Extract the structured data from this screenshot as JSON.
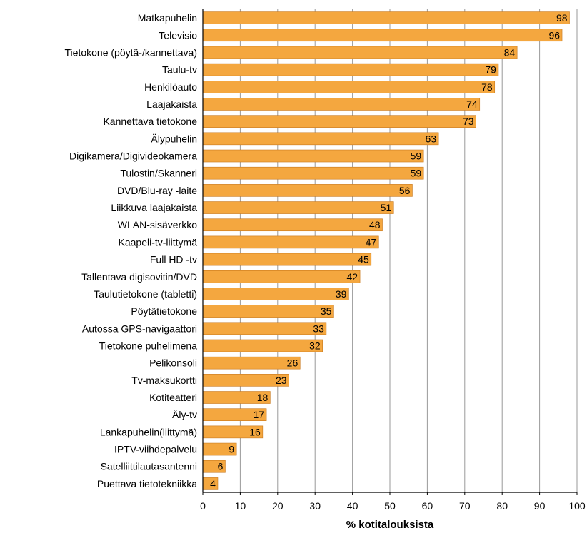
{
  "chart_data": {
    "type": "bar",
    "orientation": "horizontal",
    "title": "",
    "xlabel": "% kotitalouksista",
    "ylabel": "",
    "xlim": [
      0,
      100
    ],
    "xticks": [
      0,
      10,
      20,
      30,
      40,
      50,
      60,
      70,
      80,
      90,
      100
    ],
    "grid": true,
    "bar_color": "#F4A73F",
    "bar_edge_color": "#C8781C",
    "categories": [
      "Matkapuhelin",
      "Televisio",
      "Tietokone (pöytä-/kannettava)",
      "Taulu-tv",
      "Henkilöauto",
      "Laajakaista",
      "Kannettava tietokone",
      "Älypuhelin",
      "Digikamera/Digivideokamera",
      "Tulostin/Skanneri",
      "DVD/Blu-ray -laite",
      "Liikkuva laajakaista",
      "WLAN-sisäverkko",
      "Kaapeli-tv-liittymä",
      "Full HD -tv",
      "Tallentava digisovitin/DVD",
      "Taulutietokone (tabletti)",
      "Pöytätietokone",
      "Autossa GPS-navigaattori",
      "Tietokone puhelimena",
      "Pelikonsoli",
      "Tv-maksukortti",
      "Kotiteatteri",
      "Äly-tv",
      "Lankapuhelin(liittymä)",
      "IPTV-viihdepalvelu",
      "Satelliittilautasantenni",
      "Puettava tietotekniikka"
    ],
    "values": [
      98,
      96,
      84,
      79,
      78,
      74,
      73,
      63,
      59,
      59,
      56,
      51,
      48,
      47,
      45,
      42,
      39,
      35,
      33,
      32,
      26,
      23,
      18,
      17,
      16,
      9,
      6,
      4
    ]
  }
}
